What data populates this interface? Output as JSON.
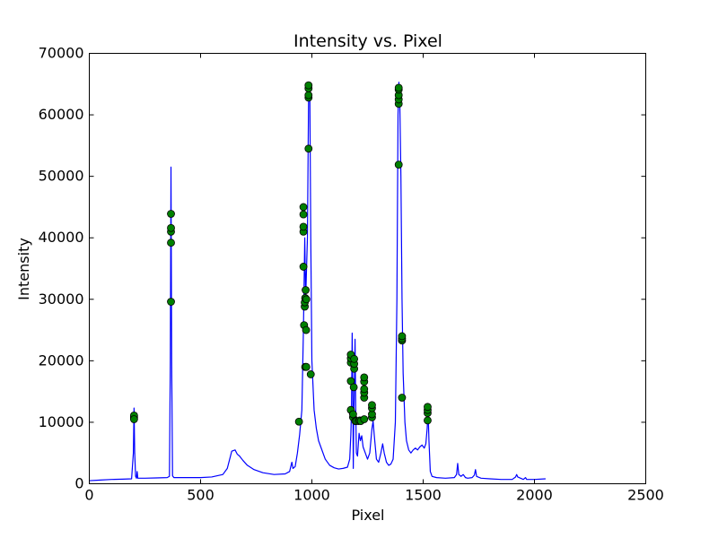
{
  "chart_data": {
    "type": "line",
    "title": "Intensity vs. Pixel",
    "xlabel": "Pixel",
    "ylabel": "Intensity",
    "xlim": [
      0,
      2500
    ],
    "ylim": [
      0,
      70000
    ],
    "x_ticks": [
      0,
      500,
      1000,
      1500,
      2000,
      2500
    ],
    "y_ticks": [
      0,
      10000,
      20000,
      30000,
      40000,
      50000,
      60000,
      70000
    ],
    "grid": false,
    "line_color": "#0000ff",
    "marker_color": "#008000",
    "series": [
      {
        "kind": "line",
        "points": [
          [
            0,
            500
          ],
          [
            50,
            600
          ],
          [
            100,
            700
          ],
          [
            150,
            750
          ],
          [
            190,
            800
          ],
          [
            198,
            5000
          ],
          [
            201,
            12300
          ],
          [
            204,
            5000
          ],
          [
            208,
            1200
          ],
          [
            212,
            900
          ],
          [
            215,
            2000
          ],
          [
            218,
            900
          ],
          [
            250,
            900
          ],
          [
            300,
            950
          ],
          [
            350,
            1000
          ],
          [
            360,
            1200
          ],
          [
            364,
            20000
          ],
          [
            367,
            51500
          ],
          [
            370,
            20000
          ],
          [
            374,
            1300
          ],
          [
            380,
            1000
          ],
          [
            450,
            1000
          ],
          [
            500,
            1000
          ],
          [
            550,
            1100
          ],
          [
            600,
            1500
          ],
          [
            620,
            2500
          ],
          [
            640,
            5300
          ],
          [
            655,
            5500
          ],
          [
            665,
            4800
          ],
          [
            675,
            4500
          ],
          [
            690,
            3800
          ],
          [
            710,
            3000
          ],
          [
            740,
            2300
          ],
          [
            780,
            1800
          ],
          [
            830,
            1500
          ],
          [
            880,
            1600
          ],
          [
            900,
            2000
          ],
          [
            910,
            3500
          ],
          [
            915,
            2500
          ],
          [
            925,
            2800
          ],
          [
            935,
            5000
          ],
          [
            945,
            8000
          ],
          [
            955,
            12000
          ],
          [
            962,
            25000
          ],
          [
            968,
            40000
          ],
          [
            972,
            30000
          ],
          [
            976,
            35000
          ],
          [
            980,
            40000
          ],
          [
            985,
            62000
          ],
          [
            988,
            64500
          ],
          [
            991,
            62000
          ],
          [
            995,
            40000
          ],
          [
            1000,
            20000
          ],
          [
            1010,
            12000
          ],
          [
            1020,
            9000
          ],
          [
            1030,
            7000
          ],
          [
            1040,
            6000
          ],
          [
            1060,
            4000
          ],
          [
            1080,
            3000
          ],
          [
            1100,
            2600
          ],
          [
            1120,
            2400
          ],
          [
            1140,
            2500
          ],
          [
            1160,
            2700
          ],
          [
            1170,
            4000
          ],
          [
            1175,
            8000
          ],
          [
            1178,
            12000
          ],
          [
            1181,
            24500
          ],
          [
            1184,
            15000
          ],
          [
            1186,
            2500
          ],
          [
            1188,
            10000
          ],
          [
            1191,
            16000
          ],
          [
            1194,
            23500
          ],
          [
            1197,
            12000
          ],
          [
            1200,
            5000
          ],
          [
            1205,
            4500
          ],
          [
            1212,
            8200
          ],
          [
            1218,
            7000
          ],
          [
            1224,
            7800
          ],
          [
            1230,
            6000
          ],
          [
            1240,
            5000
          ],
          [
            1250,
            4000
          ],
          [
            1260,
            5000
          ],
          [
            1270,
            9000
          ],
          [
            1275,
            10200
          ],
          [
            1280,
            8000
          ],
          [
            1290,
            4000
          ],
          [
            1300,
            3500
          ],
          [
            1310,
            5000
          ],
          [
            1318,
            6500
          ],
          [
            1325,
            5000
          ],
          [
            1335,
            3500
          ],
          [
            1345,
            3000
          ],
          [
            1355,
            3200
          ],
          [
            1365,
            4000
          ],
          [
            1375,
            10000
          ],
          [
            1382,
            30000
          ],
          [
            1387,
            60000
          ],
          [
            1391,
            65300
          ],
          [
            1395,
            62000
          ],
          [
            1400,
            50000
          ],
          [
            1405,
            30000
          ],
          [
            1410,
            18000
          ],
          [
            1418,
            10000
          ],
          [
            1425,
            7000
          ],
          [
            1435,
            5500
          ],
          [
            1445,
            5000
          ],
          [
            1455,
            5500
          ],
          [
            1465,
            5800
          ],
          [
            1475,
            5500
          ],
          [
            1485,
            6000
          ],
          [
            1495,
            6300
          ],
          [
            1505,
            5800
          ],
          [
            1512,
            6500
          ],
          [
            1518,
            9000
          ],
          [
            1522,
            12000
          ],
          [
            1526,
            7000
          ],
          [
            1532,
            2000
          ],
          [
            1540,
            1200
          ],
          [
            1560,
            1000
          ],
          [
            1600,
            900
          ],
          [
            1640,
            1000
          ],
          [
            1650,
            1500
          ],
          [
            1655,
            3300
          ],
          [
            1660,
            1500
          ],
          [
            1670,
            1200
          ],
          [
            1680,
            1500
          ],
          [
            1690,
            1000
          ],
          [
            1700,
            900
          ],
          [
            1720,
            1000
          ],
          [
            1730,
            1400
          ],
          [
            1735,
            2300
          ],
          [
            1740,
            1200
          ],
          [
            1760,
            900
          ],
          [
            1800,
            800
          ],
          [
            1850,
            700
          ],
          [
            1900,
            700
          ],
          [
            1915,
            1100
          ],
          [
            1920,
            1500
          ],
          [
            1925,
            1100
          ],
          [
            1950,
            700
          ],
          [
            1960,
            1000
          ],
          [
            1965,
            700
          ],
          [
            2000,
            700
          ],
          [
            2050,
            800
          ]
        ]
      },
      {
        "kind": "markers",
        "points": [
          [
            201,
            10800
          ],
          [
            201,
            11100
          ],
          [
            201,
            10500
          ],
          [
            367,
            29600
          ],
          [
            367,
            39200
          ],
          [
            367,
            41000
          ],
          [
            367,
            41600
          ],
          [
            367,
            43900
          ],
          [
            942,
            10100
          ],
          [
            962,
            35300
          ],
          [
            962,
            41000
          ],
          [
            962,
            41800
          ],
          [
            962,
            43800
          ],
          [
            962,
            45000
          ],
          [
            965,
            25800
          ],
          [
            968,
            28800
          ],
          [
            968,
            29500
          ],
          [
            970,
            30200
          ],
          [
            972,
            31500
          ],
          [
            975,
            30000
          ],
          [
            970,
            19000
          ],
          [
            975,
            19000
          ],
          [
            974,
            25000
          ],
          [
            985,
            54500
          ],
          [
            985,
            62800
          ],
          [
            985,
            63200
          ],
          [
            985,
            64300
          ],
          [
            985,
            64800
          ],
          [
            995,
            17800
          ],
          [
            1175,
            12000
          ],
          [
            1175,
            16700
          ],
          [
            1175,
            19700
          ],
          [
            1175,
            20400
          ],
          [
            1175,
            21000
          ],
          [
            1185,
            10800
          ],
          [
            1185,
            11300
          ],
          [
            1188,
            15700
          ],
          [
            1190,
            18700
          ],
          [
            1190,
            19500
          ],
          [
            1190,
            20300
          ],
          [
            1195,
            10200
          ],
          [
            1200,
            10200
          ],
          [
            1210,
            10200
          ],
          [
            1215,
            10300
          ],
          [
            1220,
            10200
          ],
          [
            1235,
            10500
          ],
          [
            1235,
            14000
          ],
          [
            1235,
            14800
          ],
          [
            1235,
            15400
          ],
          [
            1235,
            16600
          ],
          [
            1235,
            17300
          ],
          [
            1270,
            10800
          ],
          [
            1270,
            11300
          ],
          [
            1270,
            12300
          ],
          [
            1270,
            12800
          ],
          [
            1390,
            51900
          ],
          [
            1390,
            61800
          ],
          [
            1390,
            62500
          ],
          [
            1390,
            63200
          ],
          [
            1390,
            64100
          ],
          [
            1390,
            64400
          ],
          [
            1405,
            14000
          ],
          [
            1405,
            23300
          ],
          [
            1405,
            23600
          ],
          [
            1405,
            24000
          ],
          [
            1520,
            10300
          ],
          [
            1520,
            11500
          ],
          [
            1520,
            12000
          ],
          [
            1520,
            12500
          ]
        ]
      }
    ]
  }
}
